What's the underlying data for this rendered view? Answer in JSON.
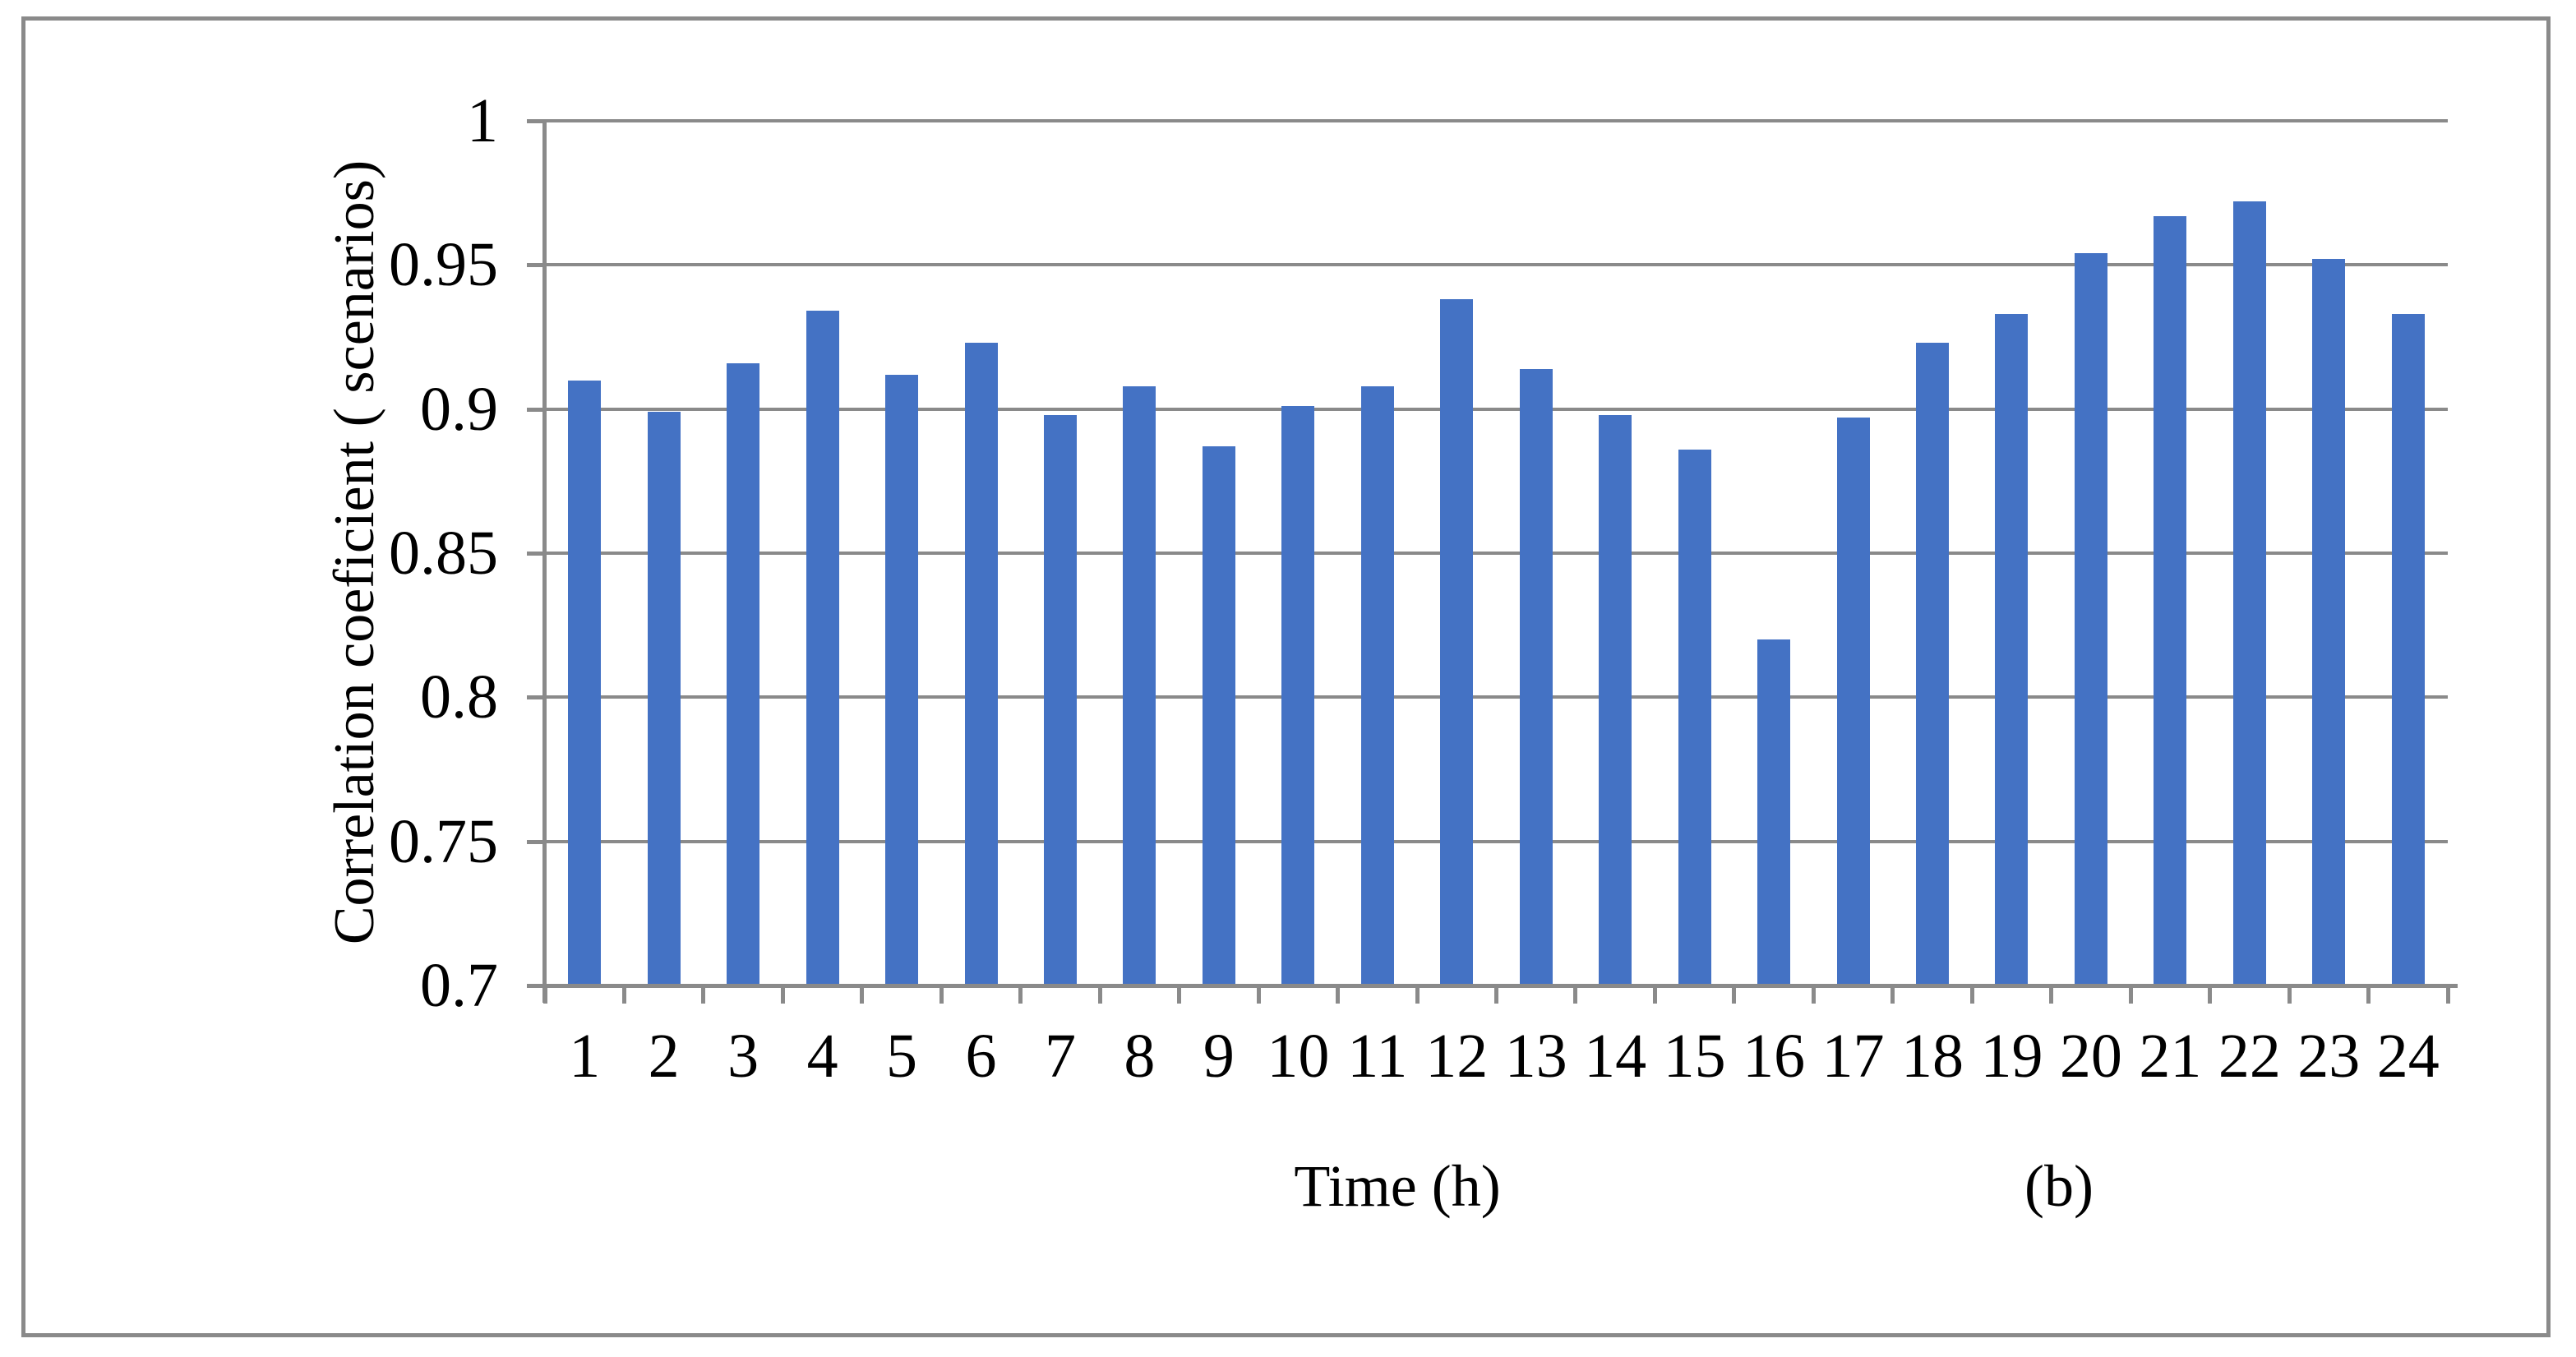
{
  "colors": {
    "bar": "#4472C4",
    "grid": "#8a8a8a",
    "axis": "#8a8a8a",
    "frame": "#8a8a8a",
    "text": "#000000",
    "background": "#ffffff"
  },
  "chart_data": {
    "type": "bar",
    "title": "",
    "ylabel": "Correlation coeficient ( scenarios)",
    "xlabel": "Time (h)",
    "panel_label": "(b)",
    "categories": [
      "1",
      "2",
      "3",
      "4",
      "5",
      "6",
      "7",
      "8",
      "9",
      "10",
      "11",
      "12",
      "13",
      "14",
      "15",
      "16",
      "17",
      "18",
      "19",
      "20",
      "21",
      "22",
      "23",
      "24"
    ],
    "values": [
      0.91,
      0.899,
      0.916,
      0.934,
      0.912,
      0.923,
      0.898,
      0.908,
      0.887,
      0.901,
      0.908,
      0.938,
      0.914,
      0.898,
      0.886,
      0.82,
      0.897,
      0.923,
      0.933,
      0.954,
      0.967,
      0.972,
      0.952,
      0.933
    ],
    "ylim": [
      0.7,
      1.0
    ],
    "yticks": [
      {
        "label": "1",
        "value": 1.0
      },
      {
        "label": "0.95",
        "value": 0.95
      },
      {
        "label": "0.9",
        "value": 0.9
      },
      {
        "label": "0.85",
        "value": 0.85
      },
      {
        "label": "0.8",
        "value": 0.8
      },
      {
        "label": "0.75",
        "value": 0.75
      },
      {
        "label": "0.7",
        "value": 0.7
      }
    ],
    "grid": true,
    "legend": "none"
  }
}
